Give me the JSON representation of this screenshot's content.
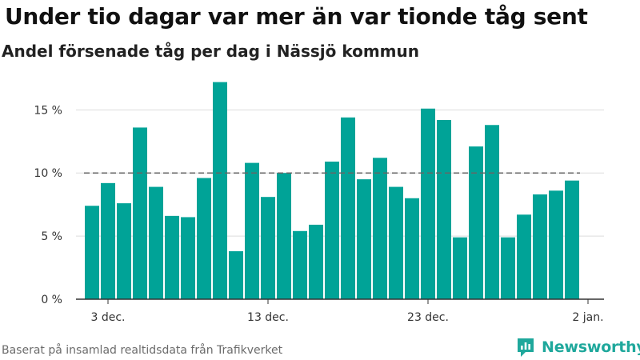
{
  "title": "Under tio dagar var mer än var tionde tåg sent",
  "subtitle": "Andel försenade tåg per dag i Nässjö kommun",
  "source": "Baserat på insamlad realtidsdata från Trafikverket",
  "brand": {
    "name": "Newsworthy",
    "icon": "newsworthy-logo-icon",
    "color": "#1fa89c"
  },
  "colors": {
    "bar": "#00a397",
    "reference_line": "#666666",
    "grid": "#dddddd",
    "axis": "#333333"
  },
  "chart_data": {
    "type": "bar",
    "x": [
      "2023-12-02",
      "2023-12-03",
      "2023-12-04",
      "2023-12-05",
      "2023-12-06",
      "2023-12-07",
      "2023-12-08",
      "2023-12-09",
      "2023-12-10",
      "2023-12-11",
      "2023-12-12",
      "2023-12-13",
      "2023-12-14",
      "2023-12-15",
      "2023-12-16",
      "2023-12-17",
      "2023-12-18",
      "2023-12-19",
      "2023-12-20",
      "2023-12-21",
      "2023-12-22",
      "2023-12-23",
      "2023-12-24",
      "2023-12-25",
      "2023-12-26",
      "2023-12-27",
      "2023-12-28",
      "2023-12-29",
      "2023-12-30",
      "2023-12-31",
      "2024-01-01"
    ],
    "values": [
      7.4,
      9.2,
      7.6,
      13.6,
      8.9,
      6.6,
      6.5,
      9.6,
      17.2,
      3.8,
      10.8,
      8.1,
      10.0,
      5.4,
      5.9,
      10.9,
      14.4,
      9.5,
      11.2,
      8.9,
      8.0,
      15.1,
      14.2,
      4.9,
      12.1,
      13.8,
      4.9,
      6.7,
      8.3,
      8.6,
      9.4
    ],
    "reference_line": {
      "value": 10,
      "style": "dashed"
    },
    "y_ticks": [
      0,
      5,
      10,
      15
    ],
    "y_tick_labels": [
      "0 %",
      "5 %",
      "10 %",
      "15 %"
    ],
    "ylim": [
      0,
      18
    ],
    "x_ticks": [
      "2023-12-03",
      "2023-12-13",
      "2023-12-23",
      "2024-01-02"
    ],
    "x_tick_labels": [
      "3 dec.",
      "13 dec.",
      "23 dec.",
      "2 jan."
    ],
    "xlim": [
      "2023-12-01",
      "2024-01-03"
    ],
    "grid": true
  }
}
